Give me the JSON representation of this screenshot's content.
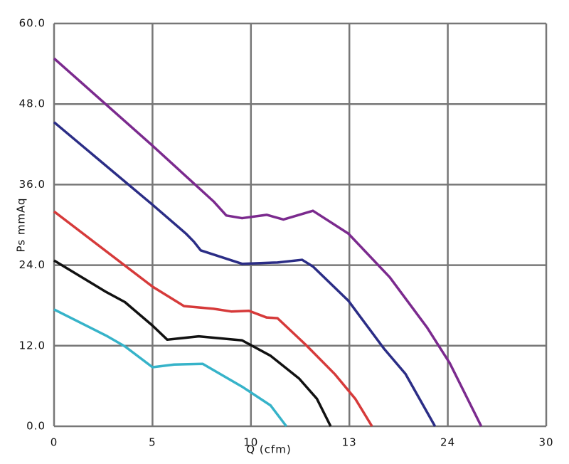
{
  "chart_data": {
    "type": "line",
    "x_label": "Q (cfm)",
    "y_label": "Ps mmAq",
    "xlim": [
      0,
      5
    ],
    "ylim": [
      0,
      60
    ],
    "xticks": [
      {
        "value": 0,
        "label": "0"
      },
      {
        "value": 1,
        "label": "5"
      },
      {
        "value": 2,
        "label": "10"
      },
      {
        "value": 3,
        "label": "13"
      },
      {
        "value": 4,
        "label": "24"
      },
      {
        "value": 5,
        "label": "30"
      }
    ],
    "yticks": [
      {
        "value": 0,
        "label": "0.0"
      },
      {
        "value": 12,
        "label": "12.0"
      },
      {
        "value": 24,
        "label": "24.0"
      },
      {
        "value": 36,
        "label": "36.0"
      },
      {
        "value": 48,
        "label": "48.0"
      },
      {
        "value": 60,
        "label": "60.0"
      }
    ],
    "grid": true,
    "series": [
      {
        "color": "#7b2a8e",
        "x": [
          0,
          1,
          1.62,
          1.75,
          1.91,
          2.16,
          2.33,
          2.63,
          2.99,
          3.41,
          3.79,
          4.02,
          4.34
        ],
        "values": [
          54.8,
          41.8,
          33.5,
          31.4,
          31.0,
          31.5,
          30.8,
          32.1,
          28.7,
          22.2,
          14.7,
          9.4,
          0
        ]
      },
      {
        "color": "#2b2d86",
        "x": [
          0,
          1,
          1.34,
          1.42,
          1.49,
          1.91,
          2.27,
          2.52,
          2.63,
          2.99,
          3.35,
          3.57,
          3.87
        ],
        "values": [
          45.3,
          33.0,
          28.7,
          27.5,
          26.2,
          24.2,
          24.4,
          24.8,
          23.8,
          18.7,
          11.6,
          7.8,
          0
        ]
      },
      {
        "color": "#d63a3a",
        "x": [
          0,
          1,
          1.32,
          1.62,
          1.8,
          1.98,
          2.16,
          2.27,
          2.56,
          2.85,
          3.06,
          3.23
        ],
        "values": [
          32.0,
          20.8,
          17.9,
          17.5,
          17.1,
          17.2,
          16.2,
          16.1,
          12.1,
          7.8,
          4.1,
          0
        ]
      },
      {
        "color": "#111111",
        "x": [
          0,
          0.53,
          0.72,
          1,
          1.15,
          1.47,
          1.91,
          2.2,
          2.49,
          2.67,
          2.81
        ],
        "values": [
          24.7,
          20.0,
          18.5,
          15.0,
          12.9,
          13.4,
          12.8,
          10.5,
          7.1,
          4.1,
          0
        ]
      },
      {
        "color": "#36b3c9",
        "x": [
          0,
          0.53,
          0.72,
          1,
          1.22,
          1.51,
          1.91,
          2.2,
          2.36
        ],
        "values": [
          17.4,
          13.5,
          11.9,
          8.8,
          9.2,
          9.3,
          5.9,
          3.1,
          0
        ]
      }
    ]
  }
}
